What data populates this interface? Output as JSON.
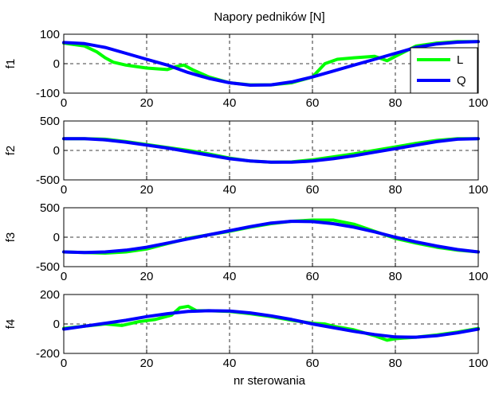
{
  "figure": {
    "title": "Napory pedników [N]",
    "xlabel": "nr sterowania"
  },
  "legend": {
    "placement": "right",
    "entries": [
      {
        "label": "L",
        "color": "#00ff00"
      },
      {
        "label": "Q",
        "color": "#0000ff"
      }
    ]
  },
  "chart_data": [
    {
      "type": "line",
      "ylabel": "f1",
      "xlim": [
        0,
        100
      ],
      "ylim": [
        -100,
        100
      ],
      "xticks": [
        0,
        20,
        40,
        60,
        80,
        100
      ],
      "yticks": [
        -100,
        0,
        100
      ],
      "grid": true,
      "series": [
        {
          "name": "L",
          "color": "#00ff00",
          "x": [
            0,
            5,
            8,
            10,
            12,
            15,
            20,
            25,
            27,
            29,
            31,
            35,
            40,
            45,
            50,
            55,
            60,
            63,
            66,
            70,
            75,
            78,
            80,
            85,
            90,
            95,
            100
          ],
          "y": [
            70,
            60,
            40,
            20,
            5,
            -5,
            -15,
            -20,
            -10,
            -5,
            -20,
            -45,
            -65,
            -72,
            -72,
            -65,
            -45,
            0,
            15,
            20,
            25,
            10,
            25,
            60,
            70,
            75,
            75
          ]
        },
        {
          "name": "Q",
          "color": "#0000ff",
          "x": [
            0,
            5,
            10,
            15,
            20,
            25,
            30,
            35,
            40,
            45,
            50,
            55,
            60,
            65,
            70,
            75,
            80,
            85,
            90,
            95,
            100
          ],
          "y": [
            72,
            68,
            55,
            35,
            15,
            -5,
            -30,
            -50,
            -65,
            -73,
            -72,
            -62,
            -45,
            -25,
            -5,
            15,
            35,
            55,
            67,
            73,
            75
          ]
        }
      ]
    },
    {
      "type": "line",
      "ylabel": "f2",
      "xlim": [
        0,
        100
      ],
      "ylim": [
        -500,
        500
      ],
      "xticks": [
        0,
        20,
        40,
        60,
        80,
        100
      ],
      "yticks": [
        -500,
        0,
        500
      ],
      "grid": true,
      "series": [
        {
          "name": "L",
          "color": "#00ff00",
          "x": [
            0,
            5,
            10,
            15,
            20,
            25,
            30,
            35,
            40,
            45,
            50,
            55,
            60,
            65,
            70,
            75,
            80,
            85,
            90,
            95,
            100
          ],
          "y": [
            200,
            200,
            190,
            150,
            100,
            50,
            0,
            -60,
            -130,
            -180,
            -200,
            -195,
            -160,
            -110,
            -60,
            0,
            60,
            120,
            170,
            200,
            200
          ]
        },
        {
          "name": "Q",
          "color": "#0000ff",
          "x": [
            0,
            5,
            10,
            15,
            20,
            25,
            30,
            35,
            40,
            45,
            50,
            55,
            60,
            65,
            70,
            75,
            80,
            85,
            90,
            95,
            100
          ],
          "y": [
            200,
            200,
            180,
            140,
            90,
            40,
            -20,
            -80,
            -140,
            -180,
            -200,
            -200,
            -180,
            -140,
            -90,
            -30,
            30,
            90,
            150,
            190,
            200
          ]
        }
      ]
    },
    {
      "type": "line",
      "ylabel": "f3",
      "xlim": [
        0,
        100
      ],
      "ylim": [
        -500,
        500
      ],
      "xticks": [
        0,
        20,
        40,
        60,
        80,
        100
      ],
      "yticks": [
        -500,
        0,
        500
      ],
      "grid": true,
      "series": [
        {
          "name": "L",
          "color": "#00ff00",
          "x": [
            0,
            5,
            10,
            15,
            20,
            25,
            30,
            35,
            40,
            45,
            50,
            55,
            60,
            65,
            70,
            75,
            80,
            85,
            90,
            95,
            100
          ],
          "y": [
            -250,
            -260,
            -270,
            -250,
            -200,
            -110,
            -20,
            40,
            100,
            170,
            230,
            270,
            290,
            290,
            220,
            100,
            -20,
            -100,
            -170,
            -220,
            -250
          ]
        },
        {
          "name": "Q",
          "color": "#0000ff",
          "x": [
            0,
            5,
            10,
            15,
            20,
            25,
            30,
            35,
            40,
            45,
            50,
            55,
            60,
            65,
            70,
            75,
            80,
            85,
            90,
            95,
            100
          ],
          "y": [
            -250,
            -260,
            -250,
            -220,
            -170,
            -100,
            -30,
            40,
            110,
            180,
            240,
            270,
            265,
            230,
            170,
            90,
            0,
            -80,
            -150,
            -210,
            -250
          ]
        }
      ]
    },
    {
      "type": "line",
      "ylabel": "f4",
      "xlim": [
        0,
        100
      ],
      "ylim": [
        -200,
        200
      ],
      "xticks": [
        0,
        20,
        40,
        60,
        80,
        100
      ],
      "yticks": [
        -200,
        0,
        200
      ],
      "grid": true,
      "series": [
        {
          "name": "L",
          "color": "#00ff00",
          "x": [
            0,
            5,
            10,
            14,
            18,
            22,
            26,
            28,
            30,
            32,
            35,
            40,
            45,
            50,
            55,
            60,
            63,
            65,
            70,
            75,
            78,
            80,
            85,
            90,
            95,
            100
          ],
          "y": [
            -30,
            -15,
            0,
            -10,
            15,
            30,
            60,
            110,
            120,
            90,
            90,
            85,
            70,
            50,
            25,
            5,
            0,
            -15,
            -40,
            -80,
            -110,
            -100,
            -90,
            -75,
            -55,
            -30
          ]
        },
        {
          "name": "Q",
          "color": "#0000ff",
          "x": [
            0,
            5,
            10,
            15,
            20,
            25,
            30,
            35,
            40,
            45,
            50,
            55,
            60,
            65,
            70,
            75,
            80,
            85,
            90,
            95,
            100
          ],
          "y": [
            -35,
            -15,
            5,
            25,
            50,
            70,
            85,
            90,
            88,
            75,
            55,
            30,
            0,
            -25,
            -50,
            -72,
            -88,
            -90,
            -80,
            -60,
            -35
          ]
        }
      ]
    }
  ]
}
